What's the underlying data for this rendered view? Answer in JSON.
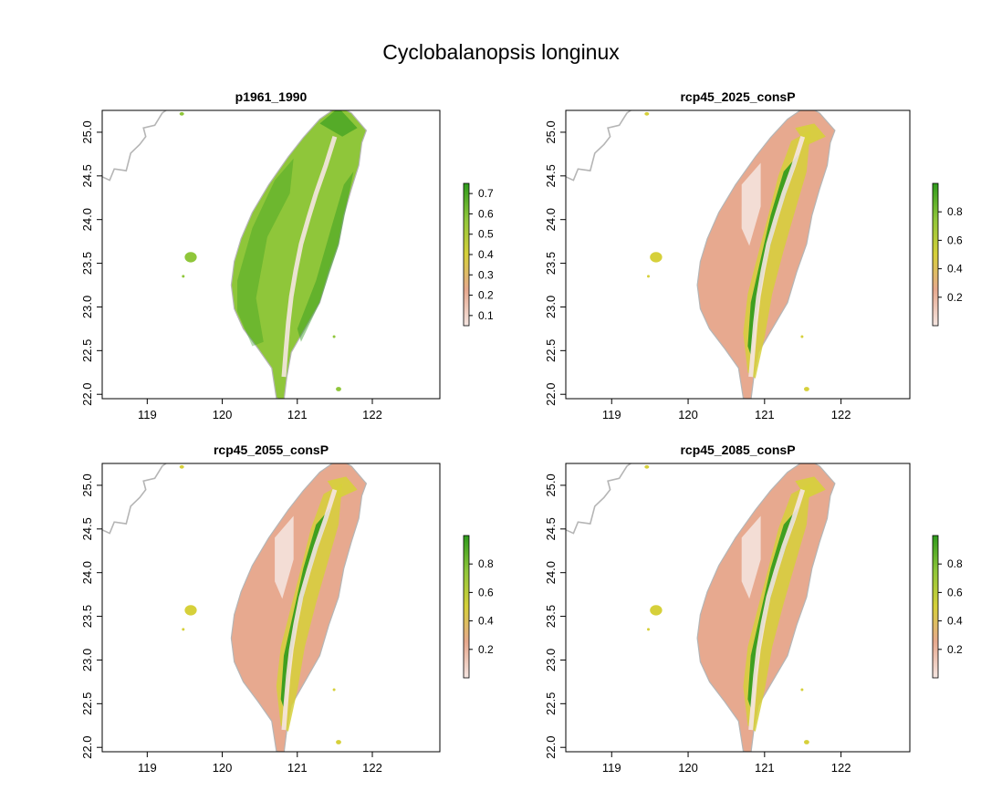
{
  "title": "Cyclobalanopsis longinux",
  "colors": {
    "high": "#2e9a1c",
    "mid_high": "#8fc63a",
    "mid": "#d6d03a",
    "low": "#e7a98f",
    "very_low": "#f5e6e2",
    "coast": "#b5b5b5"
  },
  "chart_data": [
    {
      "type": "heatmap",
      "title": "p1961_1990",
      "xlim": [
        118.4,
        122.9
      ],
      "ylim": [
        21.95,
        25.25
      ],
      "x_ticks": [
        119,
        120,
        121,
        122
      ],
      "y_ticks": [
        22.0,
        22.5,
        23.0,
        23.5,
        24.0,
        24.5,
        25.0
      ],
      "legend": {
        "ticks": [
          0.1,
          0.2,
          0.3,
          0.4,
          0.5,
          0.6,
          0.7
        ],
        "range": [
          0.05,
          0.75
        ]
      },
      "scheme": "green"
    },
    {
      "type": "heatmap",
      "title": "rcp45_2025_consP",
      "xlim": [
        118.4,
        122.9
      ],
      "ylim": [
        21.95,
        25.25
      ],
      "x_ticks": [
        119,
        120,
        121,
        122
      ],
      "y_ticks": [
        22.0,
        22.5,
        23.0,
        23.5,
        24.0,
        24.5,
        25.0
      ],
      "legend": {
        "ticks": [
          0.2,
          0.4,
          0.6,
          0.8
        ],
        "range": [
          0.0,
          1.0
        ]
      },
      "scheme": "tan"
    },
    {
      "type": "heatmap",
      "title": "rcp45_2055_consP",
      "xlim": [
        118.4,
        122.9
      ],
      "ylim": [
        21.95,
        25.25
      ],
      "x_ticks": [
        119,
        120,
        121,
        122
      ],
      "y_ticks": [
        22.0,
        22.5,
        23.0,
        23.5,
        24.0,
        24.5,
        25.0
      ],
      "legend": {
        "ticks": [
          0.2,
          0.4,
          0.6,
          0.8
        ],
        "range": [
          0.0,
          1.0
        ]
      },
      "scheme": "tan"
    },
    {
      "type": "heatmap",
      "title": "rcp45_2085_consP",
      "xlim": [
        118.4,
        122.9
      ],
      "ylim": [
        21.95,
        25.25
      ],
      "x_ticks": [
        119,
        120,
        121,
        122
      ],
      "y_ticks": [
        22.0,
        22.5,
        23.0,
        23.5,
        24.0,
        24.5,
        25.0
      ],
      "legend": {
        "ticks": [
          0.2,
          0.4,
          0.6,
          0.8
        ],
        "range": [
          0.0,
          1.0
        ]
      },
      "scheme": "tan"
    }
  ]
}
